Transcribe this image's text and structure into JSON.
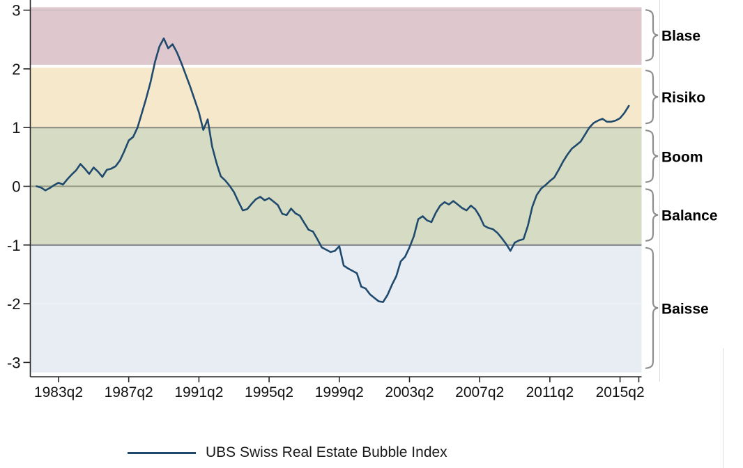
{
  "chart_data": {
    "type": "line",
    "title": "",
    "legend": {
      "label": "UBS Swiss Real Estate Bubble Index",
      "position": "bottom"
    },
    "x_axis": {
      "tick_labels": [
        "1983q2",
        "1987q2",
        "1991q2",
        "1995q2",
        "1999q2",
        "2003q2",
        "2007q2",
        "2011q2",
        "2015q2"
      ],
      "tick_quarter_index": [
        5,
        21,
        37,
        53,
        69,
        85,
        101,
        117,
        133
      ]
    },
    "y_axis": {
      "tick_labels": [
        "3",
        "2",
        "1",
        "0",
        "-1",
        "-2",
        "-3"
      ],
      "tick_values": [
        3,
        2,
        1,
        0,
        -1,
        -2,
        -3
      ]
    },
    "ylim": [
      -3.17,
      3.05
    ],
    "grid": true,
    "gridlines": [
      {
        "value": 3,
        "color": "#c9bcc1",
        "width": 1.3
      },
      {
        "value": 1,
        "color": "#85897f",
        "width": 2.0
      },
      {
        "value": 0,
        "color": "#90967e",
        "width": 2.0
      },
      {
        "value": -1,
        "color": "#8d9194",
        "width": 2.4
      },
      {
        "value": -2,
        "color": "#eff3f6",
        "width": 1.6
      }
    ],
    "bands": [
      {
        "label": "Blase",
        "from": 2.07,
        "to": 3.05,
        "color": "#dec7cd"
      },
      {
        "label": "Risiko",
        "from": 1.0,
        "to": 2.02,
        "color": "#f6e9cb"
      },
      {
        "label": "Boom",
        "from": 0.0,
        "to": 1.0,
        "color": "#d6dbc3"
      },
      {
        "label": "Balance",
        "from": -1.0,
        "to": 0.0,
        "color": "#d6dbc3"
      },
      {
        "label": "Baisse",
        "from": -3.17,
        "to": -1.0,
        "color": "#e7edf3"
      }
    ],
    "brace_color": "#8e8e8e",
    "axis_color": "#262626",
    "series": [
      {
        "name": "UBS Swiss Real Estate Bubble Index",
        "color": "#1f4a6e",
        "x_start": "1982q1",
        "frequency": "quarterly",
        "values": [
          0.0,
          -0.02,
          -0.07,
          -0.03,
          0.02,
          0.06,
          0.03,
          0.12,
          0.2,
          0.27,
          0.38,
          0.3,
          0.21,
          0.32,
          0.25,
          0.16,
          0.28,
          0.3,
          0.34,
          0.44,
          0.6,
          0.78,
          0.84,
          1.0,
          1.25,
          1.5,
          1.78,
          2.12,
          2.38,
          2.52,
          2.35,
          2.42,
          2.28,
          2.1,
          1.9,
          1.7,
          1.48,
          1.26,
          0.96,
          1.14,
          0.68,
          0.4,
          0.17,
          0.1,
          0.01,
          -0.1,
          -0.26,
          -0.41,
          -0.39,
          -0.3,
          -0.22,
          -0.18,
          -0.24,
          -0.2,
          -0.26,
          -0.32,
          -0.47,
          -0.49,
          -0.38,
          -0.46,
          -0.5,
          -0.62,
          -0.74,
          -0.77,
          -0.9,
          -1.04,
          -1.08,
          -1.12,
          -1.1,
          -1.02,
          -1.35,
          -1.4,
          -1.44,
          -1.48,
          -1.71,
          -1.74,
          -1.84,
          -1.9,
          -1.96,
          -1.97,
          -1.85,
          -1.68,
          -1.53,
          -1.28,
          -1.2,
          -1.04,
          -0.85,
          -0.56,
          -0.51,
          -0.58,
          -0.61,
          -0.45,
          -0.33,
          -0.27,
          -0.31,
          -0.25,
          -0.31,
          -0.37,
          -0.41,
          -0.33,
          -0.39,
          -0.51,
          -0.67,
          -0.71,
          -0.73,
          -0.79,
          -0.88,
          -0.98,
          -1.1,
          -0.96,
          -0.92,
          -0.9,
          -0.67,
          -0.35,
          -0.15,
          -0.04,
          0.02,
          0.09,
          0.15,
          0.28,
          0.42,
          0.54,
          0.64,
          0.7,
          0.76,
          0.88,
          1.0,
          1.08,
          1.12,
          1.15,
          1.1,
          1.1,
          1.12,
          1.16,
          1.25,
          1.37
        ]
      }
    ]
  }
}
